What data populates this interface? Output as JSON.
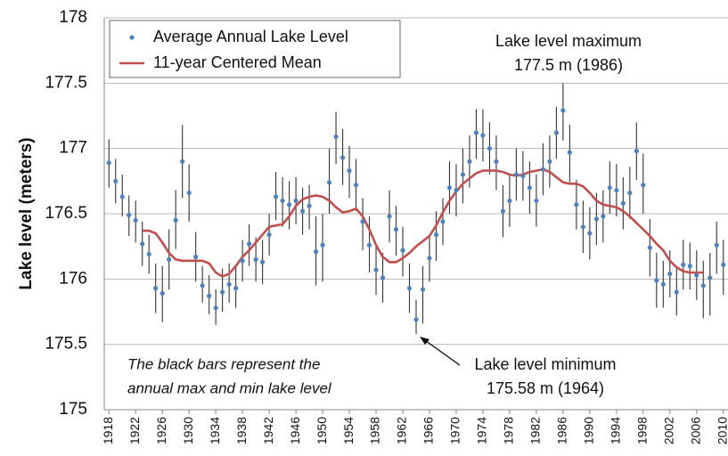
{
  "chart_data": {
    "type": "errorbar-line",
    "y_label": "Lake level (meters)",
    "xlim": [
      1917.3,
      2010.7
    ],
    "ylim": [
      175,
      178
    ],
    "yticks": [
      175,
      175.5,
      176,
      176.5,
      177,
      177.5,
      178
    ],
    "xticks": [
      1918,
      1922,
      1926,
      1930,
      1934,
      1938,
      1942,
      1946,
      1950,
      1954,
      1958,
      1962,
      1966,
      1970,
      1974,
      1978,
      1982,
      1986,
      1990,
      1994,
      1998,
      2002,
      2006,
      2010
    ],
    "grid": true,
    "legend": "top-left",
    "annotations": [
      "Lake level maximum",
      "177.5 m (1986)",
      "Lake level minimum",
      "175.58 m (1964)",
      "The black bars represent the",
      "annual max and min lake level"
    ],
    "x": [
      1918,
      1919,
      1920,
      1921,
      1922,
      1923,
      1924,
      1925,
      1926,
      1927,
      1928,
      1929,
      1930,
      1931,
      1932,
      1933,
      1934,
      1935,
      1936,
      1937,
      1938,
      1939,
      1940,
      1941,
      1942,
      1943,
      1944,
      1945,
      1946,
      1947,
      1948,
      1949,
      1950,
      1951,
      1952,
      1953,
      1954,
      1955,
      1956,
      1957,
      1958,
      1959,
      1960,
      1961,
      1962,
      1963,
      1964,
      1965,
      1966,
      1967,
      1968,
      1969,
      1970,
      1971,
      1972,
      1973,
      1974,
      1975,
      1976,
      1977,
      1978,
      1979,
      1980,
      1981,
      1982,
      1983,
      1984,
      1985,
      1986,
      1987,
      1988,
      1989,
      1990,
      1991,
      1992,
      1993,
      1994,
      1995,
      1996,
      1997,
      1998,
      1999,
      2000,
      2001,
      2002,
      2003,
      2004,
      2005,
      2006,
      2007,
      2008,
      2009,
      2010
    ],
    "series": [
      {
        "name": "Average Annual Lake Level",
        "color": "#4f81bd",
        "values": [
          176.89,
          176.75,
          176.63,
          176.49,
          176.45,
          176.27,
          176.19,
          175.93,
          175.89,
          176.15,
          176.45,
          176.9,
          176.66,
          176.17,
          175.95,
          175.87,
          175.78,
          175.9,
          175.96,
          175.93,
          176.14,
          176.27,
          176.15,
          176.13,
          176.34,
          176.63,
          176.6,
          176.57,
          176.6,
          176.52,
          176.56,
          176.21,
          176.26,
          176.74,
          177.09,
          176.93,
          176.83,
          176.72,
          176.44,
          176.26,
          176.07,
          176.01,
          176.48,
          176.38,
          176.22,
          175.93,
          175.69,
          175.92,
          176.16,
          176.34,
          176.44,
          176.7,
          176.68,
          176.8,
          176.9,
          177.12,
          177.1,
          177,
          176.9,
          176.52,
          176.6,
          176.8,
          176.79,
          176.7,
          176.6,
          176.84,
          176.9,
          177.12,
          177.29,
          176.97,
          176.57,
          176.4,
          176.35,
          176.46,
          176.48,
          176.7,
          176.68,
          176.58,
          176.66,
          176.98,
          176.72,
          176.24,
          175.99,
          175.96,
          176.04,
          175.9,
          176.11,
          176.1,
          176.03,
          175.95,
          176.01,
          176.26,
          176.11
        ],
        "max": [
          177.07,
          176.92,
          176.8,
          176.64,
          176.6,
          176.44,
          176.34,
          176.12,
          176.1,
          176.38,
          176.68,
          177.18,
          176.88,
          176.36,
          176.1,
          176.03,
          175.92,
          176.08,
          176.12,
          176.1,
          176.3,
          176.42,
          176.32,
          176.3,
          176.5,
          176.82,
          176.78,
          176.75,
          176.78,
          176.7,
          176.72,
          176.48,
          176.5,
          177,
          177.28,
          177.15,
          177.02,
          176.92,
          176.62,
          176.48,
          176.26,
          176.2,
          176.68,
          176.56,
          176.4,
          176.12,
          175.84,
          176.1,
          176.34,
          176.52,
          176.62,
          176.9,
          176.88,
          177,
          177.1,
          177.3,
          177.3,
          177.2,
          177.1,
          176.72,
          176.8,
          177,
          176.98,
          176.9,
          176.8,
          177.04,
          177.1,
          177.32,
          177.5,
          177.18,
          176.76,
          176.6,
          176.55,
          176.66,
          176.68,
          176.9,
          176.88,
          176.78,
          176.86,
          177.2,
          176.96,
          176.46,
          176.2,
          176.14,
          176.22,
          176.08,
          176.3,
          176.28,
          176.22,
          176.14,
          176.2,
          176.44,
          176.3
        ],
        "min": [
          176.7,
          176.58,
          176.48,
          176.33,
          176.28,
          176.1,
          176.04,
          175.74,
          175.67,
          175.92,
          176.23,
          176.62,
          176.44,
          175.98,
          175.82,
          175.73,
          175.65,
          175.75,
          175.82,
          175.78,
          175.98,
          176.1,
          175.98,
          175.96,
          176.18,
          176.45,
          176.4,
          176.38,
          176.42,
          176.34,
          176.38,
          175.95,
          175.98,
          176.5,
          176.88,
          176.72,
          176.62,
          176.52,
          176.22,
          176.05,
          175.88,
          175.82,
          176.28,
          176.18,
          176.02,
          175.74,
          175.58,
          175.66,
          175.98,
          176.14,
          176.26,
          176.5,
          176.48,
          176.58,
          176.7,
          176.92,
          176.9,
          176.8,
          176.68,
          176.32,
          176.4,
          176.6,
          176.6,
          176.5,
          176.4,
          176.64,
          176.7,
          176.92,
          177.06,
          176.74,
          176.38,
          176.2,
          176.15,
          176.26,
          176.28,
          176.5,
          176.48,
          176.38,
          176.46,
          176.76,
          176.5,
          176.02,
          175.78,
          175.78,
          175.86,
          175.72,
          175.92,
          175.92,
          175.84,
          175.7,
          175.72,
          176.04,
          175.88
        ]
      },
      {
        "name": "11-year Centered Mean",
        "color": "#c0504d",
        "values": [
          null,
          null,
          null,
          null,
          null,
          176.37,
          176.37,
          176.35,
          176.28,
          176.2,
          176.15,
          176.14,
          176.14,
          176.14,
          176.14,
          176.12,
          176.05,
          176.02,
          176.04,
          176.1,
          176.17,
          176.22,
          176.28,
          176.34,
          176.4,
          176.41,
          176.42,
          176.48,
          176.56,
          176.61,
          176.63,
          176.64,
          176.63,
          176.6,
          176.55,
          176.51,
          176.52,
          176.54,
          176.48,
          176.38,
          176.26,
          176.17,
          176.13,
          176.13,
          176.16,
          176.2,
          176.25,
          176.29,
          176.33,
          176.41,
          176.51,
          176.6,
          176.67,
          176.73,
          176.77,
          176.81,
          176.83,
          176.83,
          176.83,
          176.82,
          176.8,
          176.79,
          176.8,
          176.82,
          176.83,
          176.84,
          176.82,
          176.78,
          176.74,
          176.73,
          176.73,
          176.71,
          176.66,
          176.6,
          176.57,
          176.56,
          176.55,
          176.52,
          176.48,
          176.43,
          176.38,
          176.33,
          176.27,
          176.22,
          176.14,
          176.09,
          176.06,
          176.05,
          176.05,
          176.05,
          null,
          null,
          null
        ]
      }
    ]
  }
}
